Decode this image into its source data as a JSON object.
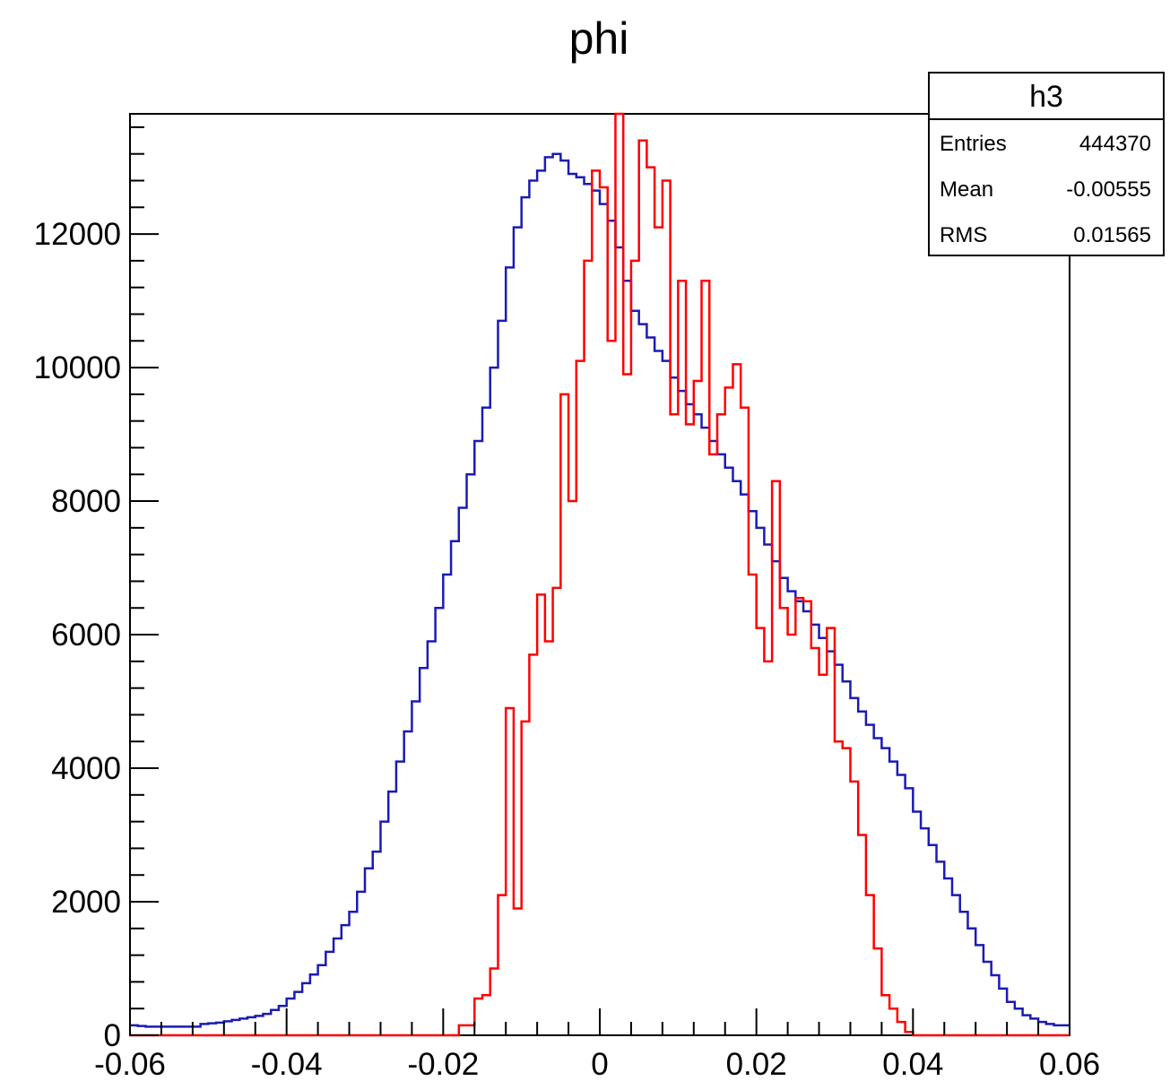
{
  "chart_data": {
    "type": "line",
    "title": "phi",
    "xlabel": "",
    "ylabel": "",
    "xlim": [
      -0.06,
      0.06
    ],
    "ylim": [
      0,
      13800
    ],
    "x_ticks": [
      -0.06,
      -0.04,
      -0.02,
      0,
      0.02,
      0.04,
      0.06
    ],
    "x_tick_labels": [
      "-0.06",
      "-0.04",
      "-0.02",
      "0",
      "0.02",
      "0.04",
      "0.06"
    ],
    "y_ticks": [
      0,
      2000,
      4000,
      6000,
      8000,
      10000,
      12000
    ],
    "y_tick_labels": [
      "0",
      "2000",
      "4000",
      "6000",
      "8000",
      "10000",
      "12000"
    ],
    "grid": false,
    "histogram": {
      "x_min": -0.06,
      "x_max": 0.06,
      "n_bins": 120
    },
    "series": [
      {
        "color": "#1b1bb3",
        "values": [
          150,
          140,
          130,
          130,
          130,
          130,
          130,
          130,
          130,
          170,
          180,
          190,
          210,
          230,
          250,
          270,
          290,
          320,
          380,
          440,
          550,
          650,
          780,
          910,
          1050,
          1250,
          1450,
          1650,
          1850,
          2150,
          2500,
          2750,
          3200,
          3650,
          4100,
          4550,
          5000,
          5500,
          5900,
          6400,
          6900,
          7400,
          7900,
          8400,
          8900,
          9400,
          10000,
          10700,
          11500,
          12100,
          12550,
          12800,
          12950,
          13150,
          13200,
          13100,
          12900,
          12850,
          12750,
          12650,
          12450,
          12200,
          11800,
          11300,
          10850,
          10650,
          10450,
          10250,
          10100,
          9850,
          9650,
          9450,
          9300,
          9100,
          8900,
          8700,
          8500,
          8300,
          8100,
          7850,
          7600,
          7350,
          7100,
          6850,
          6650,
          6500,
          6350,
          6150,
          5950,
          5750,
          5550,
          5300,
          5050,
          4850,
          4650,
          4450,
          4300,
          4100,
          3900,
          3700,
          3350,
          3100,
          2850,
          2600,
          2350,
          2100,
          1850,
          1600,
          1350,
          1100,
          900,
          700,
          500,
          400,
          300,
          250,
          200,
          170,
          150,
          150
        ]
      },
      {
        "color": "#ff0000",
        "values": [
          0,
          0,
          0,
          0,
          0,
          0,
          0,
          0,
          0,
          0,
          0,
          0,
          0,
          0,
          0,
          0,
          0,
          0,
          0,
          0,
          0,
          0,
          0,
          0,
          0,
          0,
          0,
          0,
          0,
          0,
          0,
          0,
          0,
          0,
          0,
          0,
          0,
          0,
          0,
          0,
          0,
          0,
          150,
          150,
          550,
          600,
          1000,
          2100,
          4900,
          1900,
          4700,
          5700,
          6600,
          5900,
          6700,
          9600,
          8000,
          10100,
          11600,
          12950,
          12700,
          10400,
          13800,
          9900,
          11600,
          13400,
          13000,
          12100,
          12800,
          9300,
          11300,
          9150,
          9800,
          11300,
          8700,
          9300,
          9700,
          10050,
          9400,
          6900,
          6100,
          5600,
          8300,
          6400,
          6000,
          6550,
          6500,
          5800,
          5400,
          6100,
          4400,
          4300,
          3800,
          3000,
          2100,
          1300,
          600,
          400,
          200,
          50,
          0,
          0,
          0,
          0,
          0,
          0,
          0,
          0,
          0,
          0,
          0,
          0,
          0,
          0,
          0,
          0,
          0,
          0,
          0,
          0
        ]
      }
    ]
  },
  "stats_box": {
    "title": "h3",
    "rows": [
      {
        "label": "Entries",
        "value": "444370"
      },
      {
        "label": "Mean",
        "value": "-0.00555"
      },
      {
        "label": "RMS",
        "value": "0.01565"
      }
    ]
  }
}
